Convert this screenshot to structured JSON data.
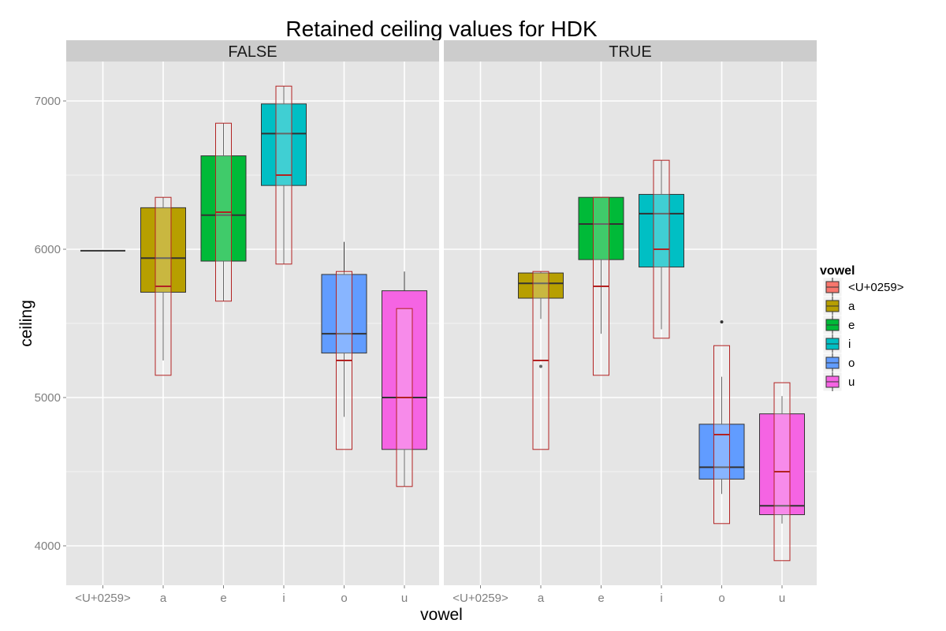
{
  "chart_data": {
    "type": "boxplot",
    "title": "Retained ceiling values for HDK",
    "xlabel": "vowel",
    "ylabel": "ceiling",
    "ylim": [
      3750,
      7300
    ],
    "yticks": [
      4000,
      5000,
      6000,
      7000
    ],
    "categories": [
      "<U+0259>",
      "a",
      "e",
      "i",
      "o",
      "u"
    ],
    "facets": [
      "FALSE",
      "TRUE"
    ],
    "legend": {
      "title": "vowel",
      "position": "right",
      "entries": [
        "<U+0259>",
        "a",
        "e",
        "i",
        "o",
        "u"
      ]
    },
    "colors": {
      "<U+0259>": "#F8766D",
      "a": "#B79F00",
      "e": "#00BA38",
      "i": "#00BFC4",
      "o": "#619CFF",
      "u": "#F564E3",
      "overlay_box": "#B22222",
      "panel_bg": "#E5E5E5",
      "strip_bg": "#CCCCCC"
    },
    "grid": true,
    "panels": [
      {
        "facet": "FALSE",
        "boxes": [
          {
            "vowel": "<U+0259>",
            "min": 5990,
            "q1": 5990,
            "median": 5990,
            "q3": 5990,
            "max": 5990,
            "outliers": []
          },
          {
            "vowel": "a",
            "min": 5250,
            "q1": 5710,
            "median": 5940,
            "q3": 6280,
            "max": 6350,
            "outliers": []
          },
          {
            "vowel": "e",
            "min": 5650,
            "q1": 5920,
            "median": 6230,
            "q3": 6630,
            "max": 6850,
            "outliers": []
          },
          {
            "vowel": "i",
            "min": 5900,
            "q1": 6430,
            "median": 6780,
            "q3": 6980,
            "max": 7100,
            "outliers": []
          },
          {
            "vowel": "o",
            "min": 4870,
            "q1": 5300,
            "median": 5430,
            "q3": 5830,
            "max": 6050,
            "outliers": []
          },
          {
            "vowel": "u",
            "min": 4400,
            "q1": 4650,
            "median": 5000,
            "q3": 5720,
            "max": 5850,
            "outliers": []
          }
        ],
        "overlay_boxes": [
          {
            "vowel": "a",
            "low": 5150,
            "median": 5750,
            "high": 6350
          },
          {
            "vowel": "e",
            "low": 5650,
            "median": 6250,
            "high": 6850
          },
          {
            "vowel": "i",
            "low": 5900,
            "median": 6500,
            "high": 7100
          },
          {
            "vowel": "o",
            "low": 4650,
            "median": 5250,
            "high": 5850
          },
          {
            "vowel": "u",
            "low": 4400,
            "median": 5000,
            "high": 5600
          }
        ]
      },
      {
        "facet": "TRUE",
        "boxes": [
          {
            "vowel": "a",
            "min": 5530,
            "q1": 5670,
            "median": 5770,
            "q3": 5840,
            "max": 5850,
            "outliers": [
              5210
            ]
          },
          {
            "vowel": "e",
            "min": 5430,
            "q1": 5930,
            "median": 6170,
            "q3": 6350,
            "max": 6350,
            "outliers": []
          },
          {
            "vowel": "i",
            "min": 5460,
            "q1": 5880,
            "median": 6240,
            "q3": 6370,
            "max": 6600,
            "outliers": []
          },
          {
            "vowel": "o",
            "min": 4350,
            "q1": 4450,
            "median": 4530,
            "q3": 4820,
            "max": 5140,
            "outliers": [
              5510
            ]
          },
          {
            "vowel": "u",
            "min": 4150,
            "q1": 4210,
            "median": 4270,
            "q3": 4890,
            "max": 5010,
            "outliers": []
          }
        ],
        "overlay_boxes": [
          {
            "vowel": "a",
            "low": 4650,
            "median": 5250,
            "high": 5850
          },
          {
            "vowel": "e",
            "low": 5150,
            "median": 5750,
            "high": 6350
          },
          {
            "vowel": "i",
            "low": 5400,
            "median": 6000,
            "high": 6600
          },
          {
            "vowel": "o",
            "low": 4150,
            "median": 4750,
            "high": 5350
          },
          {
            "vowel": "u",
            "low": 3900,
            "median": 4500,
            "high": 5100
          }
        ]
      }
    ]
  }
}
